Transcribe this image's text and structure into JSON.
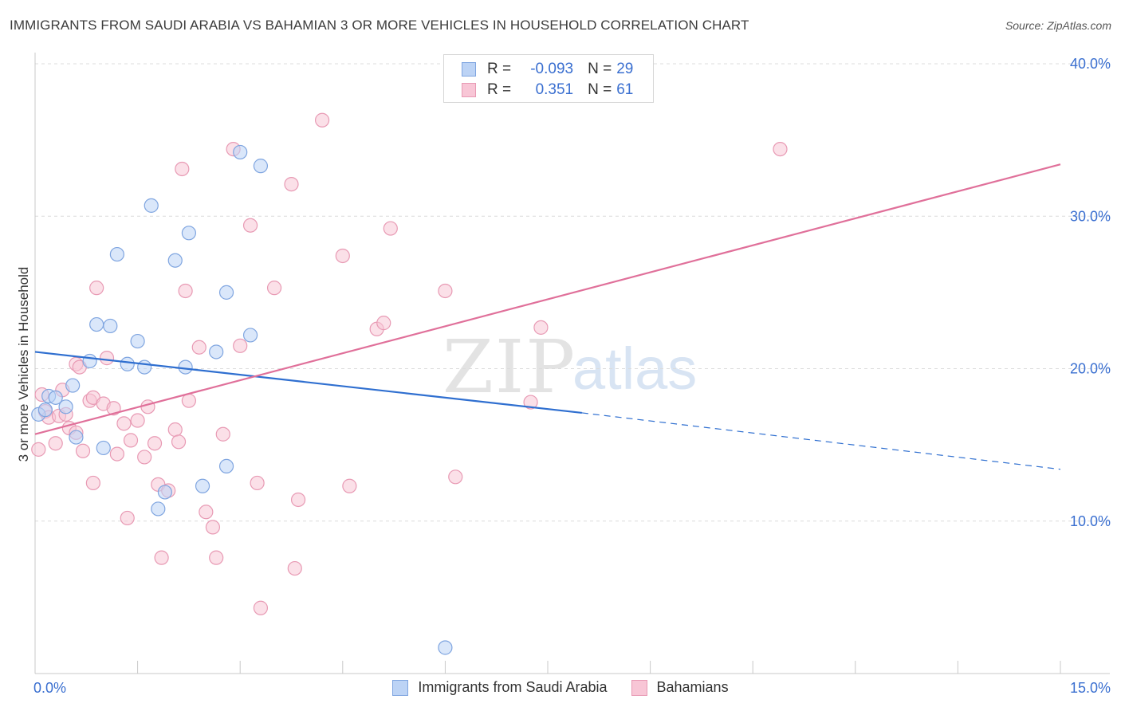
{
  "header": {
    "title": "IMMIGRANTS FROM SAUDI ARABIA VS BAHAMIAN 3 OR MORE VEHICLES IN HOUSEHOLD CORRELATION CHART",
    "source": "Source: ZipAtlas.com"
  },
  "watermark": {
    "zip": "ZIP",
    "atlas": "atlas"
  },
  "legend": {
    "r_label": "R =",
    "n_label": "N =",
    "series": [
      {
        "r": "-0.093",
        "n": "29"
      },
      {
        "r": "0.351",
        "n": "61"
      }
    ]
  },
  "colors": {
    "blue_fill": "#bcd3f5",
    "blue_stroke": "#7fa5e0",
    "blue_line": "#2f6fd0",
    "pink_fill": "#f8c6d6",
    "pink_stroke": "#e89ab4",
    "pink_line": "#e0709a",
    "tick_label": "#3a6fd0"
  },
  "chart_data": {
    "type": "scatter",
    "title": "IMMIGRANTS FROM SAUDI ARABIA VS BAHAMIAN 3 OR MORE VEHICLES IN HOUSEHOLD CORRELATION CHART",
    "xlabel": "",
    "ylabel": "3 or more Vehicles in Household",
    "xlim": [
      0,
      15
    ],
    "ylim": [
      0,
      40
    ],
    "x_tick_labels": [
      "0.0%",
      "15.0%"
    ],
    "y_ticks": [
      10,
      20,
      30,
      40
    ],
    "y_tick_labels": [
      "10.0%",
      "20.0%",
      "30.0%",
      "40.0%"
    ],
    "grid": true,
    "series": [
      {
        "name": "Immigrants from Saudi Arabia",
        "color": "blue",
        "points": [
          [
            0.05,
            17.0
          ],
          [
            0.15,
            17.3
          ],
          [
            0.2,
            18.2
          ],
          [
            0.3,
            18.1
          ],
          [
            0.45,
            17.5
          ],
          [
            0.55,
            18.9
          ],
          [
            0.6,
            15.5
          ],
          [
            0.8,
            20.5
          ],
          [
            0.9,
            22.9
          ],
          [
            1.0,
            14.8
          ],
          [
            1.1,
            22.8
          ],
          [
            1.2,
            27.5
          ],
          [
            1.35,
            20.3
          ],
          [
            1.5,
            21.8
          ],
          [
            1.6,
            20.1
          ],
          [
            1.7,
            30.7
          ],
          [
            1.8,
            10.8
          ],
          [
            1.9,
            11.9
          ],
          [
            2.05,
            27.1
          ],
          [
            2.2,
            20.1
          ],
          [
            2.25,
            28.9
          ],
          [
            2.45,
            12.3
          ],
          [
            2.8,
            13.6
          ],
          [
            2.8,
            25.0
          ],
          [
            2.65,
            21.1
          ],
          [
            3.0,
            34.2
          ],
          [
            3.15,
            22.2
          ],
          [
            3.3,
            33.3
          ],
          [
            6.0,
            1.7
          ]
        ],
        "trend": {
          "x": [
            0,
            8.0
          ],
          "y": [
            21.1,
            17.1
          ],
          "dashed_to": [
            15,
            13.4
          ]
        }
      },
      {
        "name": "Bahamians",
        "color": "pink",
        "points": [
          [
            0.05,
            14.7
          ],
          [
            0.1,
            18.3
          ],
          [
            0.15,
            17.2
          ],
          [
            0.2,
            16.8
          ],
          [
            0.3,
            15.1
          ],
          [
            0.35,
            16.9
          ],
          [
            0.4,
            18.6
          ],
          [
            0.5,
            16.1
          ],
          [
            0.6,
            15.8
          ],
          [
            0.6,
            20.3
          ],
          [
            0.65,
            20.1
          ],
          [
            0.7,
            14.6
          ],
          [
            0.8,
            17.9
          ],
          [
            0.85,
            18.1
          ],
          [
            0.85,
            12.5
          ],
          [
            0.9,
            25.3
          ],
          [
            1.0,
            17.7
          ],
          [
            1.05,
            20.7
          ],
          [
            1.15,
            17.4
          ],
          [
            1.2,
            14.4
          ],
          [
            1.3,
            16.4
          ],
          [
            1.35,
            10.2
          ],
          [
            1.4,
            15.3
          ],
          [
            1.5,
            16.6
          ],
          [
            1.6,
            14.2
          ],
          [
            1.65,
            17.5
          ],
          [
            1.75,
            15.1
          ],
          [
            1.8,
            12.4
          ],
          [
            1.85,
            7.6
          ],
          [
            1.95,
            12.0
          ],
          [
            2.05,
            16.0
          ],
          [
            2.1,
            15.2
          ],
          [
            2.15,
            33.1
          ],
          [
            2.2,
            25.1
          ],
          [
            2.25,
            17.9
          ],
          [
            2.4,
            21.4
          ],
          [
            2.5,
            10.6
          ],
          [
            2.6,
            9.6
          ],
          [
            2.65,
            7.6
          ],
          [
            2.75,
            15.7
          ],
          [
            2.9,
            34.4
          ],
          [
            3.0,
            21.5
          ],
          [
            3.15,
            29.4
          ],
          [
            3.25,
            12.5
          ],
          [
            3.3,
            4.3
          ],
          [
            3.5,
            25.3
          ],
          [
            3.75,
            32.1
          ],
          [
            3.8,
            6.9
          ],
          [
            3.85,
            11.4
          ],
          [
            4.2,
            36.3
          ],
          [
            4.5,
            27.4
          ],
          [
            4.6,
            12.3
          ],
          [
            5.0,
            22.6
          ],
          [
            5.1,
            23.0
          ],
          [
            5.2,
            29.2
          ],
          [
            6.0,
            25.1
          ],
          [
            6.15,
            12.9
          ],
          [
            7.25,
            17.8
          ],
          [
            7.4,
            22.7
          ],
          [
            10.9,
            34.4
          ],
          [
            0.45,
            17.0
          ]
        ],
        "trend": {
          "x": [
            0,
            15
          ],
          "y": [
            15.7,
            33.4
          ]
        }
      }
    ]
  }
}
